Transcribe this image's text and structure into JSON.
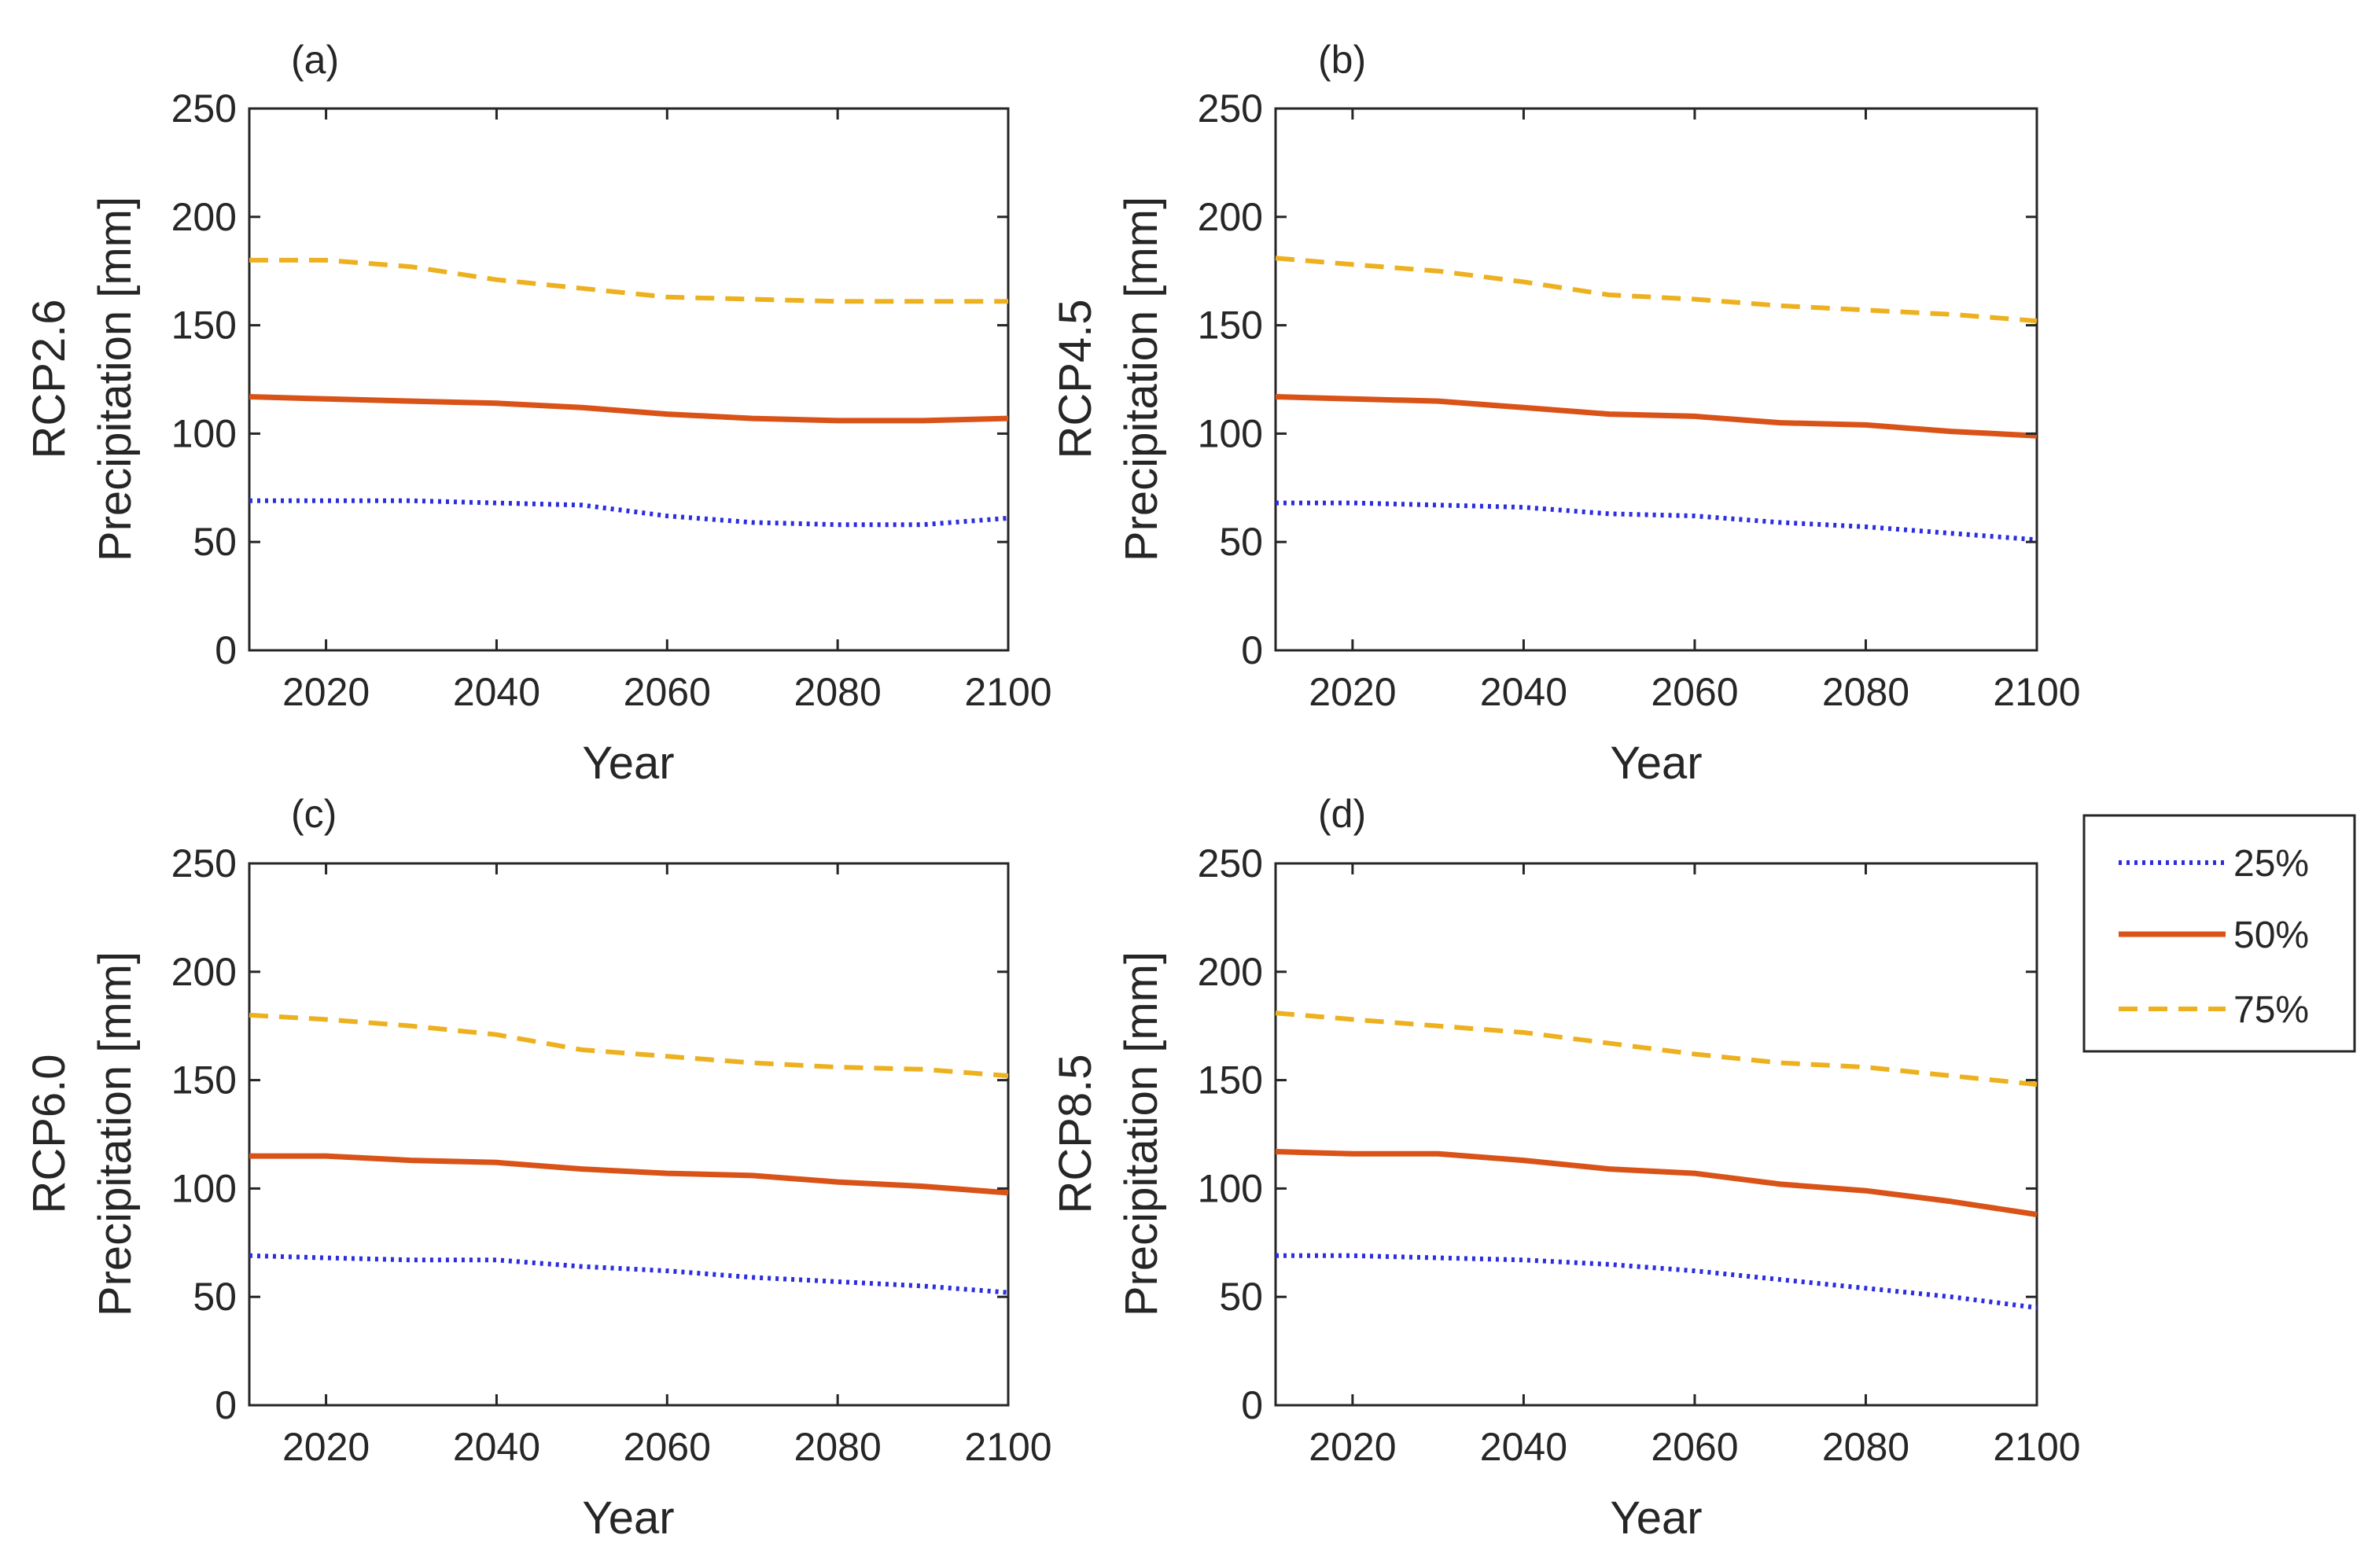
{
  "colors": {
    "p25": "#2d2de0",
    "p50": "#d95319",
    "p75": "#edb120",
    "axis": "#262626",
    "background": "#ffffff"
  },
  "legend": {
    "placement": "right, between rows",
    "entries": [
      {
        "label": "25%",
        "style": "dotted",
        "color": "#2d2de0"
      },
      {
        "label": "50%",
        "style": "solid",
        "color": "#d95319"
      },
      {
        "label": "75%",
        "style": "dashed",
        "color": "#edb120"
      }
    ]
  },
  "chart_data": [
    {
      "type": "line",
      "panel": "(a)",
      "ylabel_top": "RCP2.6",
      "ylabel_bottom": "Precipitation [mm]",
      "xlabel": "Year",
      "xlim": [
        2011,
        2100
      ],
      "ylim": [
        0,
        250
      ],
      "xticks": [
        "2020",
        "2040",
        "2060",
        "2080",
        "2100"
      ],
      "yticks": [
        "0",
        "50",
        "100",
        "150",
        "200",
        "250"
      ],
      "grid": false,
      "x": [
        2011,
        2020,
        2030,
        2040,
        2050,
        2060,
        2070,
        2080,
        2090,
        2100
      ],
      "series": [
        {
          "name": "25%",
          "values": [
            69,
            69,
            69,
            68,
            67,
            62,
            59,
            58,
            58,
            61
          ]
        },
        {
          "name": "50%",
          "values": [
            117,
            116,
            115,
            114,
            112,
            109,
            107,
            106,
            106,
            107
          ]
        },
        {
          "name": "75%",
          "values": [
            180,
            180,
            177,
            171,
            167,
            163,
            162,
            161,
            161,
            161
          ]
        }
      ]
    },
    {
      "type": "line",
      "panel": "(b)",
      "ylabel_top": "RCP4.5",
      "ylabel_bottom": "Precipitation [mm]",
      "xlabel": "Year",
      "xlim": [
        2011,
        2100
      ],
      "ylim": [
        0,
        250
      ],
      "xticks": [
        "2020",
        "2040",
        "2060",
        "2080",
        "2100"
      ],
      "yticks": [
        "0",
        "50",
        "100",
        "150",
        "200",
        "250"
      ],
      "grid": false,
      "x": [
        2011,
        2020,
        2030,
        2040,
        2050,
        2060,
        2070,
        2080,
        2090,
        2100
      ],
      "series": [
        {
          "name": "25%",
          "values": [
            68,
            68,
            67,
            66,
            63,
            62,
            59,
            57,
            54,
            51
          ]
        },
        {
          "name": "50%",
          "values": [
            117,
            116,
            115,
            112,
            109,
            108,
            105,
            104,
            101,
            99
          ]
        },
        {
          "name": "75%",
          "values": [
            181,
            178,
            175,
            170,
            164,
            162,
            159,
            157,
            155,
            152
          ]
        }
      ]
    },
    {
      "type": "line",
      "panel": "(c)",
      "ylabel_top": "RCP6.0",
      "ylabel_bottom": "Precipitation [mm]",
      "xlabel": "Year",
      "xlim": [
        2011,
        2100
      ],
      "ylim": [
        0,
        250
      ],
      "xticks": [
        "2020",
        "2040",
        "2060",
        "2080",
        "2100"
      ],
      "yticks": [
        "0",
        "50",
        "100",
        "150",
        "200",
        "250"
      ],
      "grid": false,
      "x": [
        2011,
        2020,
        2030,
        2040,
        2050,
        2060,
        2070,
        2080,
        2090,
        2100
      ],
      "series": [
        {
          "name": "25%",
          "values": [
            69,
            68,
            67,
            67,
            64,
            62,
            59,
            57,
            55,
            52
          ]
        },
        {
          "name": "50%",
          "values": [
            115,
            115,
            113,
            112,
            109,
            107,
            106,
            103,
            101,
            98
          ]
        },
        {
          "name": "75%",
          "values": [
            180,
            178,
            175,
            171,
            164,
            161,
            158,
            156,
            155,
            152
          ]
        }
      ]
    },
    {
      "type": "line",
      "panel": "(d)",
      "ylabel_top": "RCP8.5",
      "ylabel_bottom": "Precipitation [mm]",
      "xlabel": "Year",
      "xlim": [
        2011,
        2100
      ],
      "ylim": [
        0,
        250
      ],
      "xticks": [
        "2020",
        "2040",
        "2060",
        "2080",
        "2100"
      ],
      "yticks": [
        "0",
        "50",
        "100",
        "150",
        "200",
        "250"
      ],
      "grid": false,
      "x": [
        2011,
        2020,
        2030,
        2040,
        2050,
        2060,
        2070,
        2080,
        2090,
        2100
      ],
      "series": [
        {
          "name": "25%",
          "values": [
            69,
            69,
            68,
            67,
            65,
            62,
            58,
            54,
            50,
            45
          ]
        },
        {
          "name": "50%",
          "values": [
            117,
            116,
            116,
            113,
            109,
            107,
            102,
            99,
            94,
            88
          ]
        },
        {
          "name": "75%",
          "values": [
            181,
            178,
            175,
            172,
            167,
            162,
            158,
            156,
            152,
            148
          ]
        }
      ]
    }
  ]
}
